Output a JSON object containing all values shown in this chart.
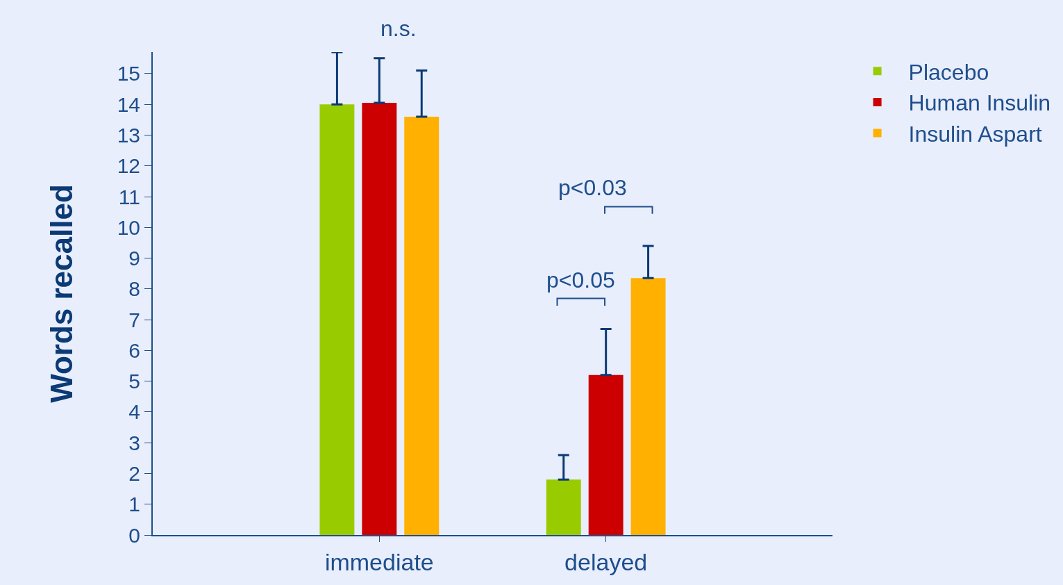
{
  "chart_data": {
    "type": "bar",
    "ylabel": "Words recalled",
    "categories": [
      "immediate",
      "delayed"
    ],
    "series": [
      {
        "name": "Placebo",
        "color": "#99cc00",
        "values": [
          14.0,
          1.8
        ],
        "errors": [
          [
            14.0,
            15.7
          ],
          [
            1.8,
            2.6
          ]
        ]
      },
      {
        "name": "Human Insulin",
        "color": "#cc0000",
        "values": [
          14.05,
          5.2
        ],
        "errors": [
          [
            14.05,
            15.5
          ],
          [
            5.2,
            6.7
          ]
        ]
      },
      {
        "name": "Insulin Aspart",
        "color": "#ffb000",
        "values": [
          13.6,
          8.35
        ],
        "errors": [
          [
            13.6,
            15.1
          ],
          [
            8.35,
            9.4
          ]
        ]
      }
    ],
    "ylim": [
      0,
      15.7
    ],
    "yticks": [
      0,
      1,
      2,
      3,
      4,
      5,
      6,
      7,
      8,
      9,
      10,
      11,
      12,
      13,
      14,
      15
    ],
    "annotations": [
      "n.s.",
      "p<0.05",
      "p<0.03"
    ],
    "grid": false,
    "legend": "top right"
  }
}
